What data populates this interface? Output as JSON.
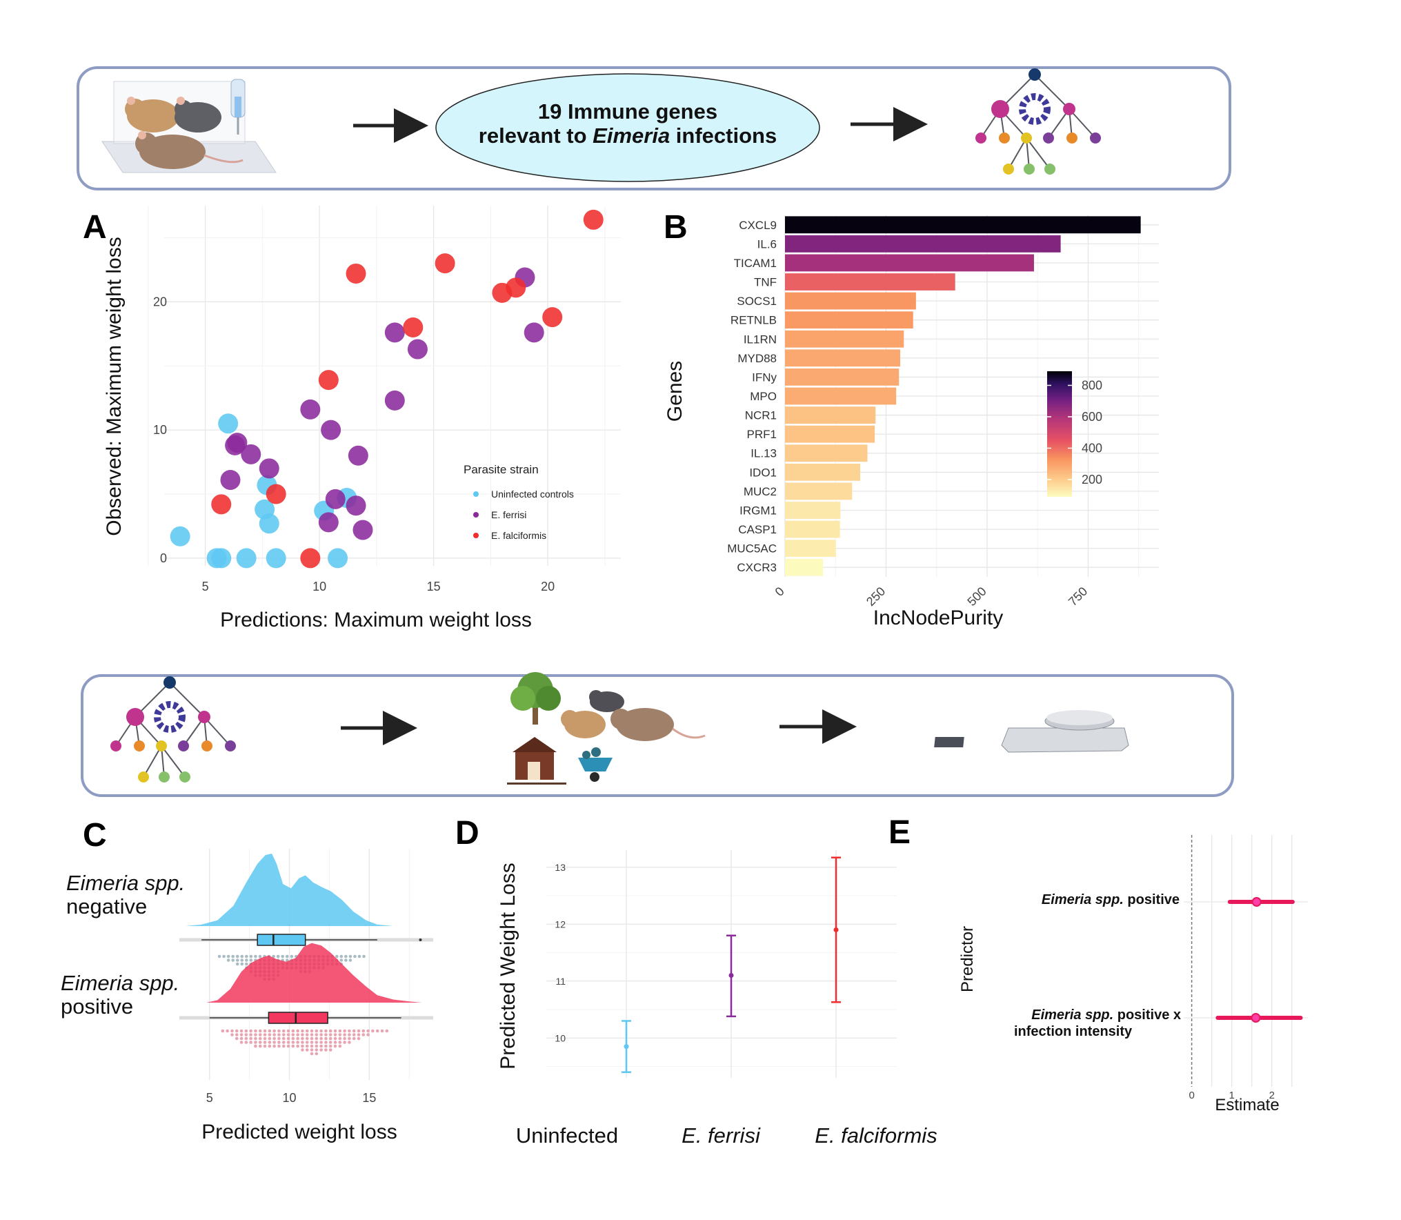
{
  "header": {
    "ellipse_line1": "19 Immune genes",
    "ellipse_line2_pre": "relevant to ",
    "ellipse_line2_em": "Eimeria",
    "ellipse_line2_post": " infections"
  },
  "icons": [
    "mouse-cage-icon",
    "arrow-right-icon",
    "decision-tree-icon",
    "tree-icon",
    "barn-icon",
    "wheelbarrow-icon",
    "scale-icon"
  ],
  "panels": {
    "A": "A",
    "B": "B",
    "C": "C",
    "D": "D",
    "E": "E"
  },
  "colors": {
    "uninfected": "#5ec8f2",
    "ferrisi": "#8b2a9c",
    "falciformis": "#f02e2e",
    "forest": "#e8195a",
    "box": "#7d8fba"
  },
  "chart_data": [
    {
      "id": "A",
      "type": "scatter",
      "xlabel": "Predictions: Maximum weight loss",
      "ylabel": "Observed: Maximum weight loss",
      "xlim": [
        3.2,
        23.2
      ],
      "ylim": [
        -0.6,
        27.5
      ],
      "xticks": [
        5,
        10,
        15,
        20
      ],
      "yticks": [
        0,
        10,
        20
      ],
      "legend_title": "Parasite strain",
      "legend_position": "right",
      "series": [
        {
          "name": "Uninfected controls",
          "color": "#5ec8f2",
          "points": [
            [
              3.9,
              1.7
            ],
            [
              5.5,
              0
            ],
            [
              5.7,
              0
            ],
            [
              6.0,
              10.5
            ],
            [
              6.8,
              0
            ],
            [
              8.1,
              0
            ],
            [
              7.6,
              3.8
            ],
            [
              7.7,
              5.7
            ],
            [
              7.8,
              2.7
            ],
            [
              10.2,
              3.7
            ],
            [
              10.8,
              0
            ],
            [
              11.2,
              4.7
            ]
          ]
        },
        {
          "name": "E. ferrisi",
          "color": "#8b2a9c",
          "points": [
            [
              6.1,
              6.1
            ],
            [
              6.3,
              8.8
            ],
            [
              6.4,
              9.0
            ],
            [
              7.0,
              8.1
            ],
            [
              7.8,
              7.0
            ],
            [
              9.6,
              11.6
            ],
            [
              10.5,
              10.0
            ],
            [
              10.4,
              2.8
            ],
            [
              10.7,
              4.6
            ],
            [
              11.6,
              4.1
            ],
            [
              11.7,
              8.0
            ],
            [
              11.9,
              2.2
            ],
            [
              13.3,
              17.6
            ],
            [
              13.3,
              12.3
            ],
            [
              14.3,
              16.3
            ],
            [
              19.0,
              21.9
            ],
            [
              19.4,
              17.6
            ]
          ]
        },
        {
          "name": "E. falciformis",
          "color": "#f02e2e",
          "points": [
            [
              5.7,
              4.2
            ],
            [
              8.1,
              5.0
            ],
            [
              9.6,
              0
            ],
            [
              10.4,
              13.9
            ],
            [
              11.6,
              22.2
            ],
            [
              14.1,
              18.0
            ],
            [
              15.5,
              23.0
            ],
            [
              18.0,
              20.7
            ],
            [
              18.6,
              21.1
            ],
            [
              20.2,
              18.8
            ],
            [
              22.0,
              26.4
            ]
          ]
        }
      ]
    },
    {
      "id": "B",
      "type": "bar",
      "orientation": "horizontal",
      "xlabel": "IncNodePurity",
      "ylabel": "Genes",
      "xlim": [
        0,
        925
      ],
      "xticks": [
        0,
        250,
        500,
        750
      ],
      "categories": [
        "CXCL9",
        "IL.6",
        "TICAM1",
        "TNF",
        "SOCS1",
        "RETNLB",
        "IL1RN",
        "MYD88",
        "IFNy",
        "MPO",
        "NCR1",
        "PRF1",
        "IL.13",
        "IDO1",
        "MUC2",
        "IRGM1",
        "CASP1",
        "MUC5AC",
        "CXCR3"
      ],
      "values": [
        880,
        682,
        616,
        421,
        324,
        317,
        294,
        285,
        282,
        275,
        224,
        222,
        204,
        186,
        166,
        137,
        136,
        126,
        94
      ],
      "colorbar_ticks": [
        200,
        400,
        600,
        800
      ],
      "colorbar_range": [
        90,
        890
      ]
    },
    {
      "id": "C",
      "type": "area",
      "subtype": "raincloud",
      "xlabel": "Predicted weight loss",
      "xlim": [
        3.2,
        19.0
      ],
      "xticks": [
        5,
        10,
        15
      ],
      "groups": [
        {
          "label_em": "Eimeria spp.",
          "label_rest": "negative",
          "color": "#5ec8f2",
          "density_x": [
            3.5,
            4.5,
            5.5,
            6.5,
            7.3,
            8.0,
            8.5,
            8.9,
            9.2,
            9.6,
            10.1,
            10.6,
            11.0,
            11.5,
            12.0,
            12.6,
            13.3,
            14.0,
            14.8,
            15.5,
            16.5
          ],
          "density_y": [
            0.0,
            0.02,
            0.08,
            0.28,
            0.6,
            0.86,
            0.98,
            1.0,
            0.86,
            0.58,
            0.52,
            0.66,
            0.7,
            0.6,
            0.54,
            0.48,
            0.36,
            0.2,
            0.08,
            0.02,
            0.0
          ],
          "box": {
            "min": 4.5,
            "q1": 8.0,
            "median": 9.0,
            "q3": 11.0,
            "max": 15.5
          },
          "outliers": [
            18.2
          ]
        },
        {
          "label_em": "Eimeria spp.",
          "label_rest": "positive",
          "color": "#f2385e",
          "density_x": [
            4.8,
            5.5,
            6.3,
            7.0,
            7.6,
            8.2,
            8.7,
            9.2,
            9.8,
            10.4,
            10.9,
            11.4,
            12.0,
            12.6,
            13.3,
            14.0,
            14.8,
            15.5,
            16.5,
            17.5,
            18.3
          ],
          "density_y": [
            0.0,
            0.04,
            0.22,
            0.5,
            0.64,
            0.72,
            0.76,
            0.7,
            0.66,
            0.72,
            0.9,
            0.96,
            0.92,
            0.8,
            0.62,
            0.44,
            0.26,
            0.12,
            0.05,
            0.02,
            0.0
          ],
          "box": {
            "min": 5.0,
            "q1": 8.7,
            "median": 10.4,
            "q3": 12.4,
            "max": 17.0
          },
          "outliers": []
        }
      ]
    },
    {
      "id": "D",
      "type": "scatter",
      "subtype": "pointrange",
      "ylabel": "Predicted Weight Loss",
      "ylim": [
        9.3,
        13.3
      ],
      "yticks": [
        10,
        11,
        12,
        13
      ],
      "categories": [
        "Uninfected",
        "E. ferrisi",
        "E. falciformis"
      ],
      "category_italic": [
        false,
        true,
        true
      ],
      "colors": [
        "#5ec8f2",
        "#8b2a9c",
        "#f02e2e"
      ],
      "estimate": [
        9.85,
        11.1,
        11.9
      ],
      "lower": [
        9.4,
        10.38,
        10.63
      ],
      "upper": [
        10.3,
        11.8,
        13.17
      ]
    },
    {
      "id": "E",
      "type": "scatter",
      "subtype": "coefficient",
      "xlabel": "Estimate",
      "ylabel": "Predictor",
      "xlim": [
        -0.2,
        2.9
      ],
      "xticks": [
        0,
        1,
        2
      ],
      "predictors": [
        {
          "em": "Eimeria spp.",
          "rest": " positive",
          "rest2": ""
        },
        {
          "em": "Eimeria spp.",
          "rest": " positive x",
          "rest2": "infection intensity"
        }
      ],
      "estimate": [
        1.62,
        1.6
      ],
      "lower": [
        0.95,
        0.65
      ],
      "upper": [
        2.52,
        2.72
      ]
    }
  ]
}
